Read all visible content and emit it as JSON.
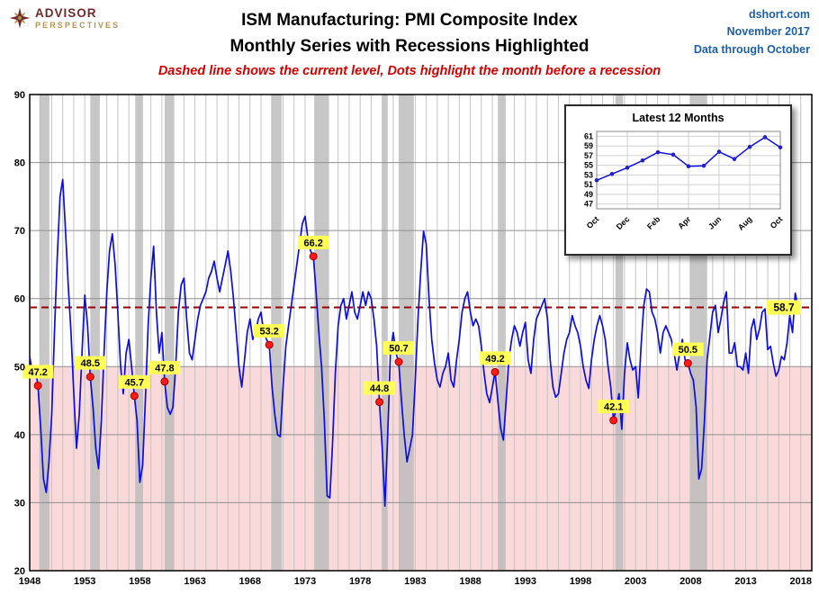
{
  "header": {
    "logo": {
      "line1": "ADVISOR",
      "line2": "PERSPECTIVES"
    },
    "title_line1": "ISM Manufacturing: PMI Composite Index",
    "title_line2": "Monthly Series with Recessions Highlighted",
    "subtitle": "Dashed line shows the current level, Dots highlight the month before a recession",
    "source": {
      "site": "dshort.com",
      "date": "November 2017",
      "through": "Data through October"
    }
  },
  "chart_data": {
    "type": "line",
    "title": "ISM Manufacturing: PMI Composite Index",
    "subtitle": "Monthly Series with Recessions Highlighted",
    "xlabel": "",
    "ylabel": "",
    "x_range": [
      1948,
      2019
    ],
    "y_range": [
      20,
      90
    ],
    "x_ticks": [
      1948,
      1953,
      1958,
      1963,
      1968,
      1973,
      1978,
      1983,
      1988,
      1993,
      1998,
      2003,
      2008,
      2013,
      2018
    ],
    "y_ticks": [
      20,
      30,
      40,
      50,
      60,
      70,
      80,
      90
    ],
    "grid": true,
    "legend": "none",
    "current_level": 58.7,
    "current_level_label": "58.7",
    "series_name": "ISM Manufacturing PMI (monthly, values estimated from plot)",
    "series": {
      "start_year": 1948.0,
      "step_years": 0.25,
      "values": [
        51.5,
        49,
        50,
        47.2,
        41,
        33.5,
        31.5,
        36,
        43,
        55,
        66,
        75,
        77.5,
        70,
        62,
        55,
        46,
        38,
        43,
        52,
        60.5,
        56,
        48.5,
        44,
        38,
        35,
        42,
        52,
        61,
        67,
        69.5,
        65,
        58,
        50,
        46,
        52,
        54,
        50,
        45.7,
        42,
        33,
        35.5,
        45,
        56,
        63,
        67.7,
        58,
        52,
        55,
        47.8,
        44,
        43,
        44,
        50,
        58,
        62,
        63,
        57,
        52,
        51,
        54,
        57,
        59,
        60,
        61,
        63,
        64,
        65.5,
        63,
        61,
        63,
        65,
        67,
        64,
        60,
        55,
        50,
        47,
        51,
        55,
        57,
        54,
        55,
        57,
        58,
        55,
        54,
        53.2,
        47,
        43,
        40,
        39.7,
        47,
        53,
        56,
        59,
        62,
        65,
        68,
        71,
        72.1,
        69,
        67,
        66.2,
        61,
        55,
        50,
        42,
        31,
        30.7,
        39,
        49,
        56,
        59,
        60,
        57,
        59,
        61,
        58,
        57,
        59,
        61,
        59,
        61,
        60,
        57,
        53,
        44.8,
        38,
        29.5,
        40,
        52,
        55,
        52,
        50.7,
        45,
        40,
        36,
        38,
        40,
        48,
        57,
        64,
        69.9,
        68,
        60,
        54,
        50.5,
        48,
        47,
        49,
        50,
        52,
        48,
        47,
        51,
        54,
        58,
        60,
        61,
        58,
        56,
        57,
        56,
        53,
        49,
        46,
        44.7,
        47,
        49.2,
        45,
        41,
        39.2,
        45,
        51,
        54,
        56,
        55,
        53,
        55,
        56.5,
        51,
        49,
        54,
        57,
        58,
        59,
        60,
        57,
        51,
        47,
        45.5,
        46,
        49,
        52,
        54,
        55,
        57.5,
        56,
        55,
        53,
        50,
        48,
        46.8,
        51,
        54,
        56,
        57.5,
        56,
        54,
        50,
        47,
        42.1,
        44,
        46,
        40.8,
        49,
        53.5,
        51,
        49.5,
        50,
        45.4,
        53,
        59,
        61.4,
        61,
        58,
        57,
        55,
        52,
        55,
        56,
        55,
        54,
        52,
        49.5,
        52,
        54,
        51,
        50.5,
        49,
        48,
        44,
        33.5,
        35,
        42,
        51,
        54.5,
        58,
        59,
        55,
        57,
        59.5,
        61,
        52,
        52,
        53.5,
        50,
        50,
        49.5,
        52,
        49,
        55.5,
        57,
        54,
        55.5,
        58,
        58.5,
        52.5,
        53,
        50.5,
        48.6,
        49.5,
        51.5,
        51,
        53.5,
        57.5,
        55,
        60.8,
        58.7
      ]
    },
    "recessions": [
      [
        1948.87,
        1949.79
      ],
      [
        1953.5,
        1954.37
      ],
      [
        1957.58,
        1958.29
      ],
      [
        1960.25,
        1961.12
      ],
      [
        1969.92,
        1970.87
      ],
      [
        1973.83,
        1975.17
      ],
      [
        1980.0,
        1980.5
      ],
      [
        1981.5,
        1982.87
      ],
      [
        1990.5,
        1991.21
      ],
      [
        2001.17,
        2001.87
      ],
      [
        2007.92,
        2009.5
      ]
    ],
    "pre_recession_dots": [
      {
        "x": 1948.75,
        "value": 47.2,
        "label": "47.2"
      },
      {
        "x": 1953.5,
        "value": 48.5,
        "label": "48.5"
      },
      {
        "x": 1957.5,
        "value": 45.7,
        "label": "45.7"
      },
      {
        "x": 1960.25,
        "value": 47.8,
        "label": "47.8"
      },
      {
        "x": 1969.75,
        "value": 53.2,
        "label": "53.2"
      },
      {
        "x": 1973.75,
        "value": 66.2,
        "label": "66.2"
      },
      {
        "x": 1979.75,
        "value": 44.8,
        "label": "44.8"
      },
      {
        "x": 1981.5,
        "value": 50.7,
        "label": "50.7"
      },
      {
        "x": 1990.25,
        "value": 49.2,
        "label": "49.2"
      },
      {
        "x": 2001.0,
        "value": 42.1,
        "label": "42.1"
      },
      {
        "x": 2007.75,
        "value": 50.5,
        "label": "50.5"
      }
    ],
    "inset": {
      "type": "line",
      "title": "Latest 12 Months",
      "y_range": [
        46,
        62
      ],
      "y_ticks": [
        47,
        49,
        51,
        53,
        55,
        57,
        59,
        61
      ],
      "x_labels": [
        "Oct",
        "Dec",
        "Feb",
        "Apr",
        "Jun",
        "Aug",
        "Oct"
      ],
      "label_every": 2,
      "values": [
        51.9,
        53.2,
        54.5,
        56,
        57.7,
        57.2,
        54.8,
        54.9,
        57.8,
        56.3,
        58.8,
        60.8,
        58.7
      ]
    },
    "colors": {
      "line": "#0d0de0",
      "dot_fill": "#ff1a1a",
      "dot_stroke": "#990000",
      "dashed": "#990000",
      "label_bg": "#ffff55",
      "below_50": "#f9d9d9",
      "recession": "#b9b9b9",
      "grid_v": "#c4c4c4",
      "grid_h": "#8f8f8f",
      "border": "#000000",
      "header_blue": "#1f5fa8",
      "subtitle_red": "#d40000",
      "logo_maroon": "#6e2b2b",
      "logo_gold": "#b39554"
    }
  }
}
